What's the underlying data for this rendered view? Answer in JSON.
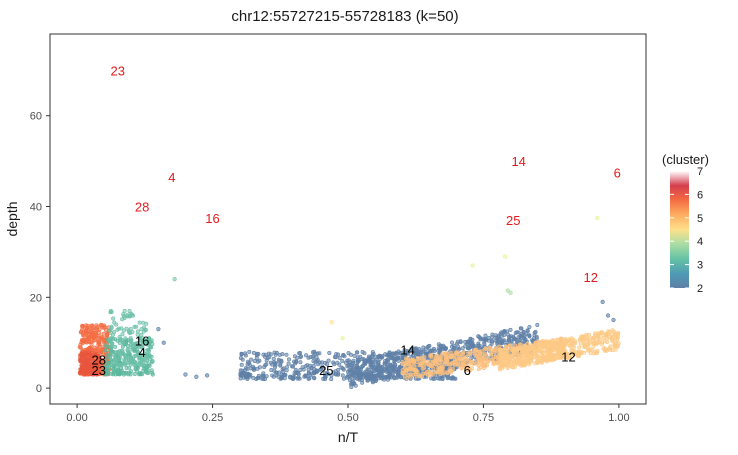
{
  "chart_data": {
    "type": "scatter",
    "title": "chr12:55727215-55728183 (k=50)",
    "xlabel": "n/T",
    "ylabel": "depth",
    "xlim": [
      -0.05,
      1.05
    ],
    "ylim": [
      -3.5,
      78
    ],
    "xticks": [
      0.0,
      0.25,
      0.5,
      0.75,
      1.0
    ],
    "xtick_labels": [
      "0.00",
      "0.25",
      "0.50",
      "0.75",
      "1.00"
    ],
    "yticks": [
      0,
      20,
      40,
      60
    ],
    "ytick_labels": [
      "0",
      "20",
      "40",
      "60"
    ],
    "grid": false,
    "legend": {
      "title": "(cluster)",
      "position": "right",
      "range": [
        2,
        7
      ],
      "ticks": [
        2,
        3,
        4,
        5,
        6,
        7
      ],
      "tick_labels": [
        "2",
        "3",
        "4",
        "5",
        "6",
        "7"
      ],
      "colors": [
        "#5e7fa6",
        "#4f9bb4",
        "#66c2a5",
        "#abdda4",
        "#fee08b",
        "#fdae61",
        "#f46d43",
        "#d53e4f",
        "#ffffff"
      ]
    },
    "clusters": [
      {
        "id": "28",
        "color": "#f46d43",
        "x_range": [
          0.005,
          0.06
        ],
        "y_range": [
          3,
          14
        ],
        "n": 320
      },
      {
        "id": "23",
        "color": "#e8553d",
        "x_range": [
          0.005,
          0.04
        ],
        "y_range": [
          3,
          8
        ],
        "n": 120
      },
      {
        "id": "4",
        "color": "#5cb89c",
        "x_range": [
          0.05,
          0.14
        ],
        "y_range": [
          3,
          11
        ],
        "n": 220
      },
      {
        "id": "16",
        "color": "#6dc0a8",
        "x_range": [
          0.06,
          0.13
        ],
        "y_range": [
          5,
          17
        ],
        "n": 130
      },
      {
        "id": "25",
        "color": "#5e7fa6",
        "x_range": [
          0.3,
          0.7
        ],
        "y_range": [
          2,
          8
        ],
        "n": 500
      },
      {
        "id": "14",
        "color": "#5f80a7",
        "x_range": [
          0.5,
          0.85
        ],
        "y_range": [
          3,
          17
        ],
        "n": 700
      },
      {
        "id": "6",
        "color": "#fdc07e",
        "x_range": [
          0.6,
          0.9
        ],
        "y_range": [
          2,
          11
        ],
        "n": 450
      },
      {
        "id": "12",
        "color": "#fdca86",
        "x_range": [
          0.78,
          1.0
        ],
        "y_range": [
          4,
          13
        ],
        "n": 420
      }
    ],
    "outliers": [
      {
        "x": 0.18,
        "y": 24,
        "color": "#7cc7a0"
      },
      {
        "x": 0.47,
        "y": 14.5,
        "color": "#fee08b"
      },
      {
        "x": 0.49,
        "y": 11,
        "color": "#e6f598"
      },
      {
        "x": 0.73,
        "y": 27,
        "color": "#e6f598"
      },
      {
        "x": 0.79,
        "y": 29,
        "color": "#e6f598"
      },
      {
        "x": 0.795,
        "y": 21.5,
        "color": "#abdda4"
      },
      {
        "x": 0.8,
        "y": 21,
        "color": "#abdda4"
      },
      {
        "x": 0.96,
        "y": 37.5,
        "color": "#e6f598"
      },
      {
        "x": 0.97,
        "y": 19,
        "color": "#5e7fa6"
      },
      {
        "x": 0.98,
        "y": 16,
        "color": "#5e7fa6"
      },
      {
        "x": 0.99,
        "y": 15,
        "color": "#5e7fa6"
      },
      {
        "x": 0.15,
        "y": 13,
        "color": "#5e7fa6"
      },
      {
        "x": 0.16,
        "y": 10,
        "color": "#5e7fa6"
      },
      {
        "x": 0.2,
        "y": 3,
        "color": "#5e7fa6"
      },
      {
        "x": 0.22,
        "y": 2.5,
        "color": "#5e7fa6"
      },
      {
        "x": 0.24,
        "y": 2.8,
        "color": "#5e7fa6"
      }
    ],
    "labels_black": [
      {
        "text": "28",
        "x": 0.04,
        "y": 6.3
      },
      {
        "text": "23",
        "x": 0.04,
        "y": 4
      },
      {
        "text": "16",
        "x": 0.12,
        "y": 10.5
      },
      {
        "text": "4",
        "x": 0.12,
        "y": 8
      },
      {
        "text": "25",
        "x": 0.46,
        "y": 4
      },
      {
        "text": "14",
        "x": 0.61,
        "y": 8.5
      },
      {
        "text": "6",
        "x": 0.72,
        "y": 4
      },
      {
        "text": "12",
        "x": 0.907,
        "y": 7
      }
    ],
    "labels_red": [
      {
        "text": "23",
        "x": 0.075,
        "y": 70
      },
      {
        "text": "4",
        "x": 0.175,
        "y": 46.5
      },
      {
        "text": "28",
        "x": 0.12,
        "y": 40
      },
      {
        "text": "16",
        "x": 0.25,
        "y": 37.5
      },
      {
        "text": "14",
        "x": 0.815,
        "y": 50
      },
      {
        "text": "6",
        "x": 0.997,
        "y": 47.5
      },
      {
        "text": "25",
        "x": 0.805,
        "y": 37
      },
      {
        "text": "12",
        "x": 0.948,
        "y": 24.5
      }
    ]
  }
}
